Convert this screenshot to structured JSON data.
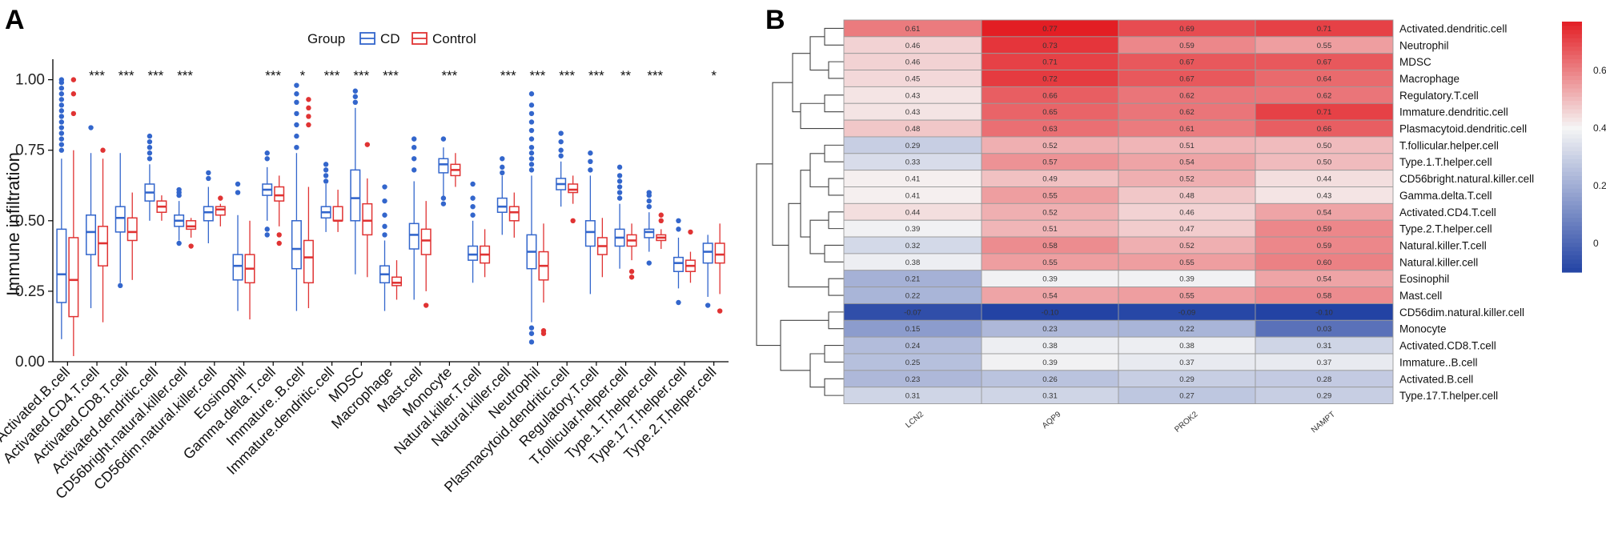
{
  "panel_a_label": "A",
  "panel_b_label": "B",
  "chart_data": [
    {
      "type": "box",
      "title": "",
      "ylabel": "Immune infiltration",
      "xlabel": "",
      "ylim": [
        0,
        1.05
      ],
      "yticks": [
        "0.00",
        "0.25",
        "0.50",
        "0.75",
        "1.00"
      ],
      "legend": {
        "title": "Group",
        "placement": "top",
        "entries": [
          {
            "name": "CD",
            "color": "#3366cc"
          },
          {
            "name": "Control",
            "color": "#e03333"
          }
        ]
      },
      "categories": [
        "Activated.B.cell",
        "Activated.CD4.T.cell",
        "Activated.CD8.T.cell",
        "Activated.dendritic.cell",
        "CD56bright.natural.killer.cell",
        "CD56dim.natural.killer.cell",
        "Eosinophil",
        "Gamma.delta.T.cell",
        "Immature..B.cell",
        "Immature.dendritic.cell",
        "MDSC",
        "Macrophage",
        "Mast.cell",
        "Monocyte",
        "Natural.killer.T.cell",
        "Natural.killer.cell",
        "Neutrophil",
        "Plasmacytoid.dendritic.cell",
        "Regulatory.T.cell",
        "T.follicular.helper.cell",
        "Type.1.T.helper.cell",
        "Type.17.T.helper.cell",
        "Type.2.T.helper.cell"
      ],
      "significance": [
        "",
        "***",
        "***",
        "***",
        "***",
        "",
        "",
        "***",
        "*",
        "***",
        "***",
        "***",
        "",
        "***",
        "",
        "***",
        "***",
        "***",
        "***",
        "**",
        "***",
        "",
        "*"
      ],
      "series": [
        {
          "name": "CD",
          "boxes": [
            [
              0.08,
              0.21,
              0.31,
              0.47,
              0.72
            ],
            [
              0.19,
              0.38,
              0.46,
              0.52,
              0.74
            ],
            [
              0.28,
              0.46,
              0.51,
              0.55,
              0.74
            ],
            [
              0.5,
              0.57,
              0.6,
              0.63,
              0.7
            ],
            [
              0.43,
              0.48,
              0.5,
              0.52,
              0.57
            ],
            [
              0.42,
              0.5,
              0.53,
              0.55,
              0.62
            ],
            [
              0.18,
              0.29,
              0.34,
              0.38,
              0.52
            ],
            [
              0.5,
              0.59,
              0.61,
              0.63,
              0.69
            ],
            [
              0.18,
              0.33,
              0.4,
              0.5,
              0.74
            ],
            [
              0.46,
              0.51,
              0.53,
              0.55,
              0.63
            ],
            [
              0.31,
              0.5,
              0.58,
              0.68,
              0.9
            ],
            [
              0.18,
              0.28,
              0.31,
              0.34,
              0.43
            ],
            [
              0.22,
              0.4,
              0.45,
              0.49,
              0.64
            ],
            [
              0.58,
              0.67,
              0.7,
              0.72,
              0.76
            ],
            [
              0.28,
              0.36,
              0.38,
              0.41,
              0.5
            ],
            [
              0.45,
              0.53,
              0.55,
              0.58,
              0.66
            ],
            [
              0.14,
              0.33,
              0.39,
              0.45,
              0.66
            ],
            [
              0.55,
              0.61,
              0.63,
              0.65,
              0.71
            ],
            [
              0.24,
              0.41,
              0.46,
              0.5,
              0.66
            ],
            [
              0.33,
              0.41,
              0.44,
              0.47,
              0.56
            ],
            [
              0.39,
              0.44,
              0.46,
              0.47,
              0.53
            ],
            [
              0.26,
              0.32,
              0.35,
              0.37,
              0.44
            ],
            [
              0.23,
              0.35,
              0.39,
              0.42,
              0.45
            ]
          ]
        },
        {
          "name": "Control",
          "boxes": [
            [
              0.02,
              0.16,
              0.29,
              0.44,
              0.75
            ],
            [
              0.14,
              0.34,
              0.42,
              0.48,
              0.72
            ],
            [
              0.29,
              0.43,
              0.46,
              0.51,
              0.6
            ],
            [
              0.5,
              0.53,
              0.55,
              0.57,
              0.59
            ],
            [
              0.44,
              0.47,
              0.48,
              0.5,
              0.51
            ],
            [
              0.48,
              0.52,
              0.54,
              0.55,
              0.56
            ],
            [
              0.15,
              0.28,
              0.33,
              0.38,
              0.5
            ],
            [
              0.48,
              0.57,
              0.59,
              0.62,
              0.66
            ],
            [
              0.19,
              0.28,
              0.37,
              0.43,
              0.62
            ],
            [
              0.46,
              0.5,
              0.5,
              0.55,
              0.61
            ],
            [
              0.3,
              0.45,
              0.5,
              0.56,
              0.65
            ],
            [
              0.22,
              0.27,
              0.28,
              0.3,
              0.36
            ],
            [
              0.25,
              0.38,
              0.43,
              0.47,
              0.57
            ],
            [
              0.62,
              0.66,
              0.68,
              0.7,
              0.74
            ],
            [
              0.3,
              0.35,
              0.38,
              0.41,
              0.47
            ],
            [
              0.44,
              0.5,
              0.53,
              0.55,
              0.6
            ],
            [
              0.21,
              0.29,
              0.34,
              0.39,
              0.49
            ],
            [
              0.56,
              0.6,
              0.61,
              0.63,
              0.66
            ],
            [
              0.3,
              0.38,
              0.41,
              0.44,
              0.51
            ],
            [
              0.36,
              0.41,
              0.43,
              0.45,
              0.49
            ],
            [
              0.4,
              0.43,
              0.44,
              0.45,
              0.47
            ],
            [
              0.28,
              0.32,
              0.34,
              0.36,
              0.39
            ],
            [
              0.24,
              0.35,
              0.38,
              0.42,
              0.49
            ]
          ]
        }
      ],
      "outliers": [
        {
          "series": "CD",
          "category_index": 0,
          "y": [
            0.75,
            0.77,
            0.79,
            0.81,
            0.83,
            0.85,
            0.87,
            0.89,
            0.91,
            0.93,
            0.95,
            0.97,
            0.99,
            1.0
          ]
        },
        {
          "series": "Control",
          "category_index": 0,
          "y": [
            0.88,
            0.95,
            1.0
          ]
        },
        {
          "series": "CD",
          "category_index": 1,
          "y": [
            0.83
          ]
        },
        {
          "series": "Control",
          "category_index": 1,
          "y": [
            0.75
          ]
        },
        {
          "series": "CD",
          "category_index": 2,
          "y": [
            0.27
          ]
        },
        {
          "series": "CD",
          "category_index": 3,
          "y": [
            0.72,
            0.74,
            0.76,
            0.78,
            0.8
          ]
        },
        {
          "series": "CD",
          "category_index": 4,
          "y": [
            0.59,
            0.6,
            0.61,
            0.42
          ]
        },
        {
          "series": "Control",
          "category_index": 4,
          "y": [
            0.41
          ]
        },
        {
          "series": "CD",
          "category_index": 5,
          "y": [
            0.65,
            0.67
          ]
        },
        {
          "series": "Control",
          "category_index": 5,
          "y": [
            0.58
          ]
        },
        {
          "series": "CD",
          "category_index": 6,
          "y": [
            0.6,
            0.63
          ]
        },
        {
          "series": "CD",
          "category_index": 7,
          "y": [
            0.72,
            0.74,
            0.45,
            0.47
          ]
        },
        {
          "series": "Control",
          "category_index": 7,
          "y": [
            0.42,
            0.45
          ]
        },
        {
          "series": "CD",
          "category_index": 8,
          "y": [
            0.76,
            0.8,
            0.84,
            0.88,
            0.92,
            0.95,
            0.98
          ]
        },
        {
          "series": "Control",
          "category_index": 8,
          "y": [
            0.84,
            0.87,
            0.9,
            0.93
          ]
        },
        {
          "series": "CD",
          "category_index": 9,
          "y": [
            0.64,
            0.66,
            0.68,
            0.7
          ]
        },
        {
          "series": "CD",
          "category_index": 10,
          "y": [
            0.92,
            0.94,
            0.96
          ]
        },
        {
          "series": "Control",
          "category_index": 10,
          "y": [
            0.77
          ]
        },
        {
          "series": "CD",
          "category_index": 11,
          "y": [
            0.45,
            0.48,
            0.52,
            0.57,
            0.62
          ]
        },
        {
          "series": "CD",
          "category_index": 12,
          "y": [
            0.68,
            0.72,
            0.76,
            0.79
          ]
        },
        {
          "series": "Control",
          "category_index": 12,
          "y": [
            0.2
          ]
        },
        {
          "series": "CD",
          "category_index": 13,
          "y": [
            0.56,
            0.58,
            0.79
          ]
        },
        {
          "series": "CD",
          "category_index": 14,
          "y": [
            0.52,
            0.55,
            0.58,
            0.63
          ]
        },
        {
          "series": "CD",
          "category_index": 15,
          "y": [
            0.67,
            0.69,
            0.72
          ]
        },
        {
          "series": "CD",
          "category_index": 16,
          "y": [
            0.68,
            0.7,
            0.72,
            0.74,
            0.76,
            0.79,
            0.82,
            0.85,
            0.88,
            0.91,
            0.95,
            0.12,
            0.1,
            0.07
          ]
        },
        {
          "series": "Control",
          "category_index": 16,
          "y": [
            0.11,
            0.1
          ]
        },
        {
          "series": "CD",
          "category_index": 17,
          "y": [
            0.73,
            0.75,
            0.78,
            0.81
          ]
        },
        {
          "series": "Control",
          "category_index": 17,
          "y": [
            0.5
          ]
        },
        {
          "series": "CD",
          "category_index": 18,
          "y": [
            0.68,
            0.71,
            0.74
          ]
        },
        {
          "series": "CD",
          "category_index": 19,
          "y": [
            0.58,
            0.6,
            0.62,
            0.64,
            0.66,
            0.69
          ]
        },
        {
          "series": "Control",
          "category_index": 19,
          "y": [
            0.3,
            0.32
          ]
        },
        {
          "series": "CD",
          "category_index": 20,
          "y": [
            0.55,
            0.57,
            0.59,
            0.6,
            0.35
          ]
        },
        {
          "series": "Control",
          "category_index": 20,
          "y": [
            0.5,
            0.52
          ]
        },
        {
          "series": "CD",
          "category_index": 21,
          "y": [
            0.21,
            0.47,
            0.5
          ]
        },
        {
          "series": "Control",
          "category_index": 21,
          "y": [
            0.46
          ]
        },
        {
          "series": "CD",
          "category_index": 22,
          "y": [
            0.2
          ]
        },
        {
          "series": "Control",
          "category_index": 22,
          "y": [
            0.18
          ]
        }
      ]
    },
    {
      "type": "heatmap",
      "title": "",
      "columns": [
        "LCN2",
        "AQP9",
        "PROK2",
        "NAMPT"
      ],
      "rows": [
        "Activated.dendritic.cell",
        "Neutrophil",
        "MDSC",
        "Macrophage",
        "Regulatory.T.cell",
        "Immature.dendritic.cell",
        "Plasmacytoid.dendritic.cell",
        "T.follicular.helper.cell",
        "Type.1.T.helper.cell",
        "CD56bright.natural.killer.cell",
        "Gamma.delta.T.cell",
        "Activated.CD4.T.cell",
        "Type.2.T.helper.cell",
        "Natural.killer.T.cell",
        "Natural.killer.cell",
        "Eosinophil",
        "Mast.cell",
        "CD56dim.natural.killer.cell",
        "Monocyte",
        "Activated.CD8.T.cell",
        "Immature..B.cell",
        "Activated.B.cell",
        "Type.17.T.helper.cell"
      ],
      "values": [
        [
          0.61,
          0.77,
          0.69,
          0.71
        ],
        [
          0.46,
          0.73,
          0.59,
          0.55
        ],
        [
          0.46,
          0.71,
          0.67,
          0.67
        ],
        [
          0.45,
          0.72,
          0.67,
          0.64
        ],
        [
          0.43,
          0.66,
          0.62,
          0.62
        ],
        [
          0.43,
          0.65,
          0.62,
          0.71
        ],
        [
          0.48,
          0.63,
          0.61,
          0.66
        ],
        [
          0.29,
          0.52,
          0.51,
          0.5
        ],
        [
          0.33,
          0.57,
          0.54,
          0.5
        ],
        [
          0.41,
          0.49,
          0.52,
          0.44
        ],
        [
          0.41,
          0.55,
          0.48,
          0.43
        ],
        [
          0.44,
          0.52,
          0.46,
          0.54
        ],
        [
          0.39,
          0.51,
          0.47,
          0.59
        ],
        [
          0.32,
          0.58,
          0.52,
          0.59
        ],
        [
          0.38,
          0.55,
          0.55,
          0.6
        ],
        [
          0.21,
          0.39,
          0.39,
          0.54
        ],
        [
          0.22,
          0.54,
          0.55,
          0.58
        ],
        [
          -0.07,
          -0.1,
          -0.09,
          -0.1
        ],
        [
          0.15,
          0.23,
          0.22,
          0.03
        ],
        [
          0.24,
          0.38,
          0.38,
          0.31
        ],
        [
          0.25,
          0.39,
          0.37,
          0.37
        ],
        [
          0.23,
          0.26,
          0.29,
          0.28
        ],
        [
          0.31,
          0.31,
          0.27,
          0.29
        ]
      ],
      "value_labels": [
        [
          "0.61",
          "0.77",
          "0.69",
          "0.71"
        ],
        [
          "0.46",
          "0.73",
          "0.59",
          "0.55"
        ],
        [
          "0.46",
          "0.71",
          "0.67",
          "0.67"
        ],
        [
          "0.45",
          "0.72",
          "0.67",
          "0.64"
        ],
        [
          "0.43",
          "0.66",
          "0.62",
          "0.62"
        ],
        [
          "0.43",
          "0.65",
          "0.62",
          "0.71"
        ],
        [
          "0.48",
          "0.63",
          "0.61",
          "0.66"
        ],
        [
          "0.29",
          "0.52",
          "0.51",
          "0.50"
        ],
        [
          "0.33",
          "0.57",
          "0.54",
          "0.50"
        ],
        [
          "0.41",
          "0.49",
          "0.52",
          "0.44"
        ],
        [
          "0.41",
          "0.55",
          "0.48",
          "0.43"
        ],
        [
          "0.44",
          "0.52",
          "0.46",
          "0.54"
        ],
        [
          "0.39",
          "0.51",
          "0.47",
          "0.59"
        ],
        [
          "0.32",
          "0.58",
          "0.52",
          "0.59"
        ],
        [
          "0.38",
          "0.55",
          "0.55",
          "0.60"
        ],
        [
          "0.21",
          "0.39",
          "0.39",
          "0.54"
        ],
        [
          "0.22",
          "0.54",
          "0.55",
          "0.58"
        ],
        [
          "-0.07",
          "-0.10",
          "-0.09",
          "-0.10"
        ],
        [
          "0.15",
          "0.23",
          "0.22",
          "0.03"
        ],
        [
          "0.24",
          "0.38",
          "0.38",
          "0.31"
        ],
        [
          "0.25",
          "0.39",
          "0.37",
          "0.37"
        ],
        [
          "0.23",
          "0.26",
          "0.29",
          "0.28"
        ],
        [
          "0.31",
          "0.31",
          "0.27",
          "0.29"
        ]
      ],
      "colorbar": {
        "ticks": [
          "0.6",
          "0.4",
          "0.2",
          "0"
        ],
        "tick_values": [
          0.6,
          0.4,
          0.2,
          0.0
        ],
        "range": [
          -0.1,
          0.77
        ],
        "low_color": "#2343a4",
        "mid_color": "#f5f5f5",
        "high_color": "#e31e24",
        "placement": "right"
      },
      "dendrogram": "rows-left"
    }
  ]
}
